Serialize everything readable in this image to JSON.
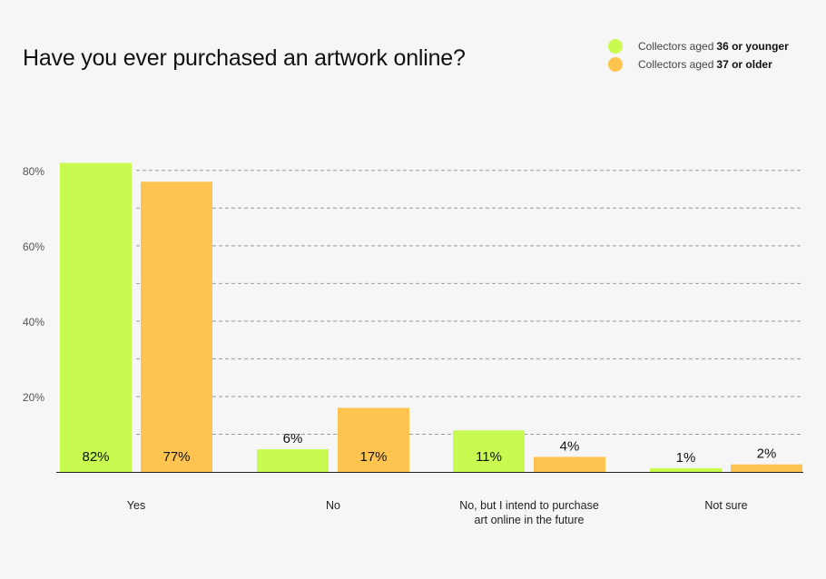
{
  "chart_data": {
    "type": "bar",
    "title": "Have you ever purchased an artwork online?",
    "categories": [
      "Yes",
      "No",
      "No, but I intend to purchase art online in the future",
      "Not sure"
    ],
    "category_lines": [
      [
        "Yes"
      ],
      [
        "No"
      ],
      [
        "No, but I intend to purchase",
        "art online in the future"
      ],
      [
        "Not sure"
      ]
    ],
    "series": [
      {
        "prefix": "Collectors aged",
        "suffix": "36 or younger",
        "color": "#c8fa50",
        "values": [
          82,
          6,
          11,
          1
        ]
      },
      {
        "prefix": "Collectors aged",
        "suffix": "37 or older",
        "color": "#ffc450",
        "values": [
          77,
          17,
          4,
          2
        ]
      }
    ],
    "value_labels": [
      [
        "82%",
        "6%",
        "11%",
        "1%"
      ],
      [
        "77%",
        "17%",
        "4%",
        "2%"
      ]
    ],
    "ylim": [
      0,
      85
    ],
    "yticks": [
      {
        "v": 20,
        "label": "20%"
      },
      {
        "v": 40,
        "label": "40%"
      },
      {
        "v": 60,
        "label": "60%"
      },
      {
        "v": 80,
        "label": "80%"
      }
    ],
    "gridlines": [
      10,
      20,
      30,
      40,
      50,
      60,
      70,
      80
    ],
    "grid": true,
    "legend": "top-right"
  }
}
